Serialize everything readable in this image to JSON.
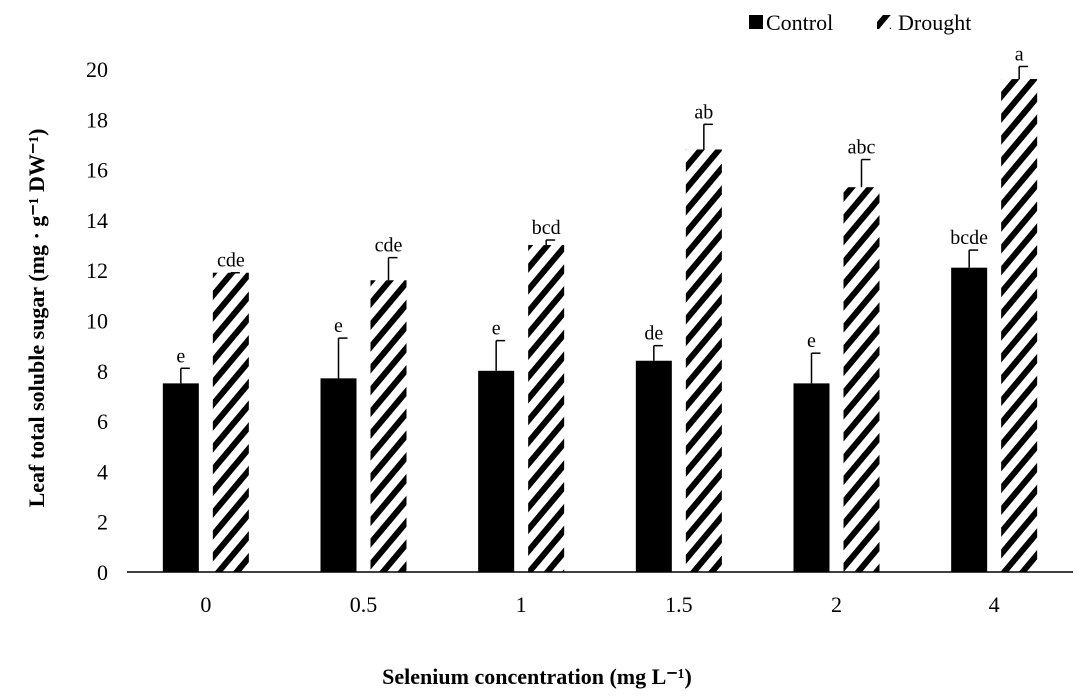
{
  "chart_data": {
    "type": "bar",
    "categories": [
      "0",
      "0.5",
      "1",
      "1.5",
      "2",
      "4"
    ],
    "series": [
      {
        "name": "Control",
        "values": [
          7.5,
          7.7,
          8.0,
          8.4,
          7.5,
          12.1
        ],
        "errors": [
          0.6,
          1.6,
          1.2,
          0.6,
          1.2,
          0.7
        ],
        "labels": [
          "e",
          "e",
          "e",
          "de",
          "e",
          "bcde"
        ],
        "pattern": "solid",
        "color": "#000000"
      },
      {
        "name": "Drought",
        "values": [
          11.9,
          11.6,
          13.0,
          16.8,
          15.3,
          19.6
        ],
        "errors": [
          0.0,
          0.9,
          0.2,
          1.0,
          1.1,
          0.5
        ],
        "labels": [
          "cde",
          "cde",
          "bcd",
          "ab",
          "abc",
          "a"
        ],
        "pattern": "diagonal-hatch",
        "color": "#000000"
      }
    ],
    "y_ticks": [
      "0",
      "2",
      "4",
      "6",
      "8",
      "10",
      "12",
      "14",
      "16",
      "18",
      "20"
    ],
    "ylim": [
      0,
      20
    ],
    "ylabel": "Leaf total soluble sugar (mg · g⁻¹ DW⁻¹)",
    "xlabel": "Selenium concentration (mg L⁻¹)",
    "legend_position": "top-right",
    "grid": false
  }
}
